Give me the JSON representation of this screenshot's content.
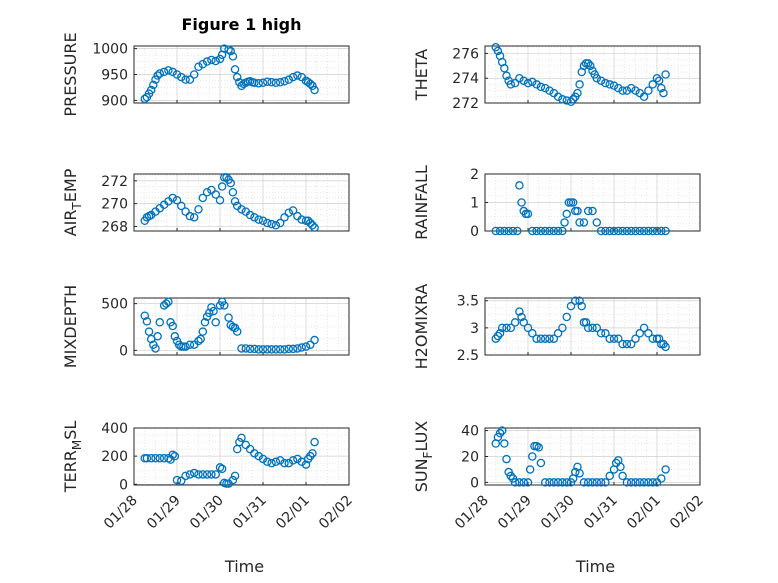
{
  "chart_data": [
    {
      "type": "scatter",
      "title": "Figure 1 high",
      "ylabel": "PRESSURE",
      "xlabel": "",
      "ylim": [
        895,
        1005
      ],
      "yticks": [
        "900",
        "950",
        "1000"
      ],
      "x_start": "01/28",
      "x": [
        0.25,
        0.3,
        0.35,
        0.4,
        0.45,
        0.5,
        0.55,
        0.6,
        0.7,
        0.8,
        0.9,
        1.0,
        1.1,
        1.2,
        1.3,
        1.4,
        1.5,
        1.6,
        1.7,
        1.8,
        1.9,
        2.0,
        2.05,
        2.1,
        2.2,
        2.25,
        2.3,
        2.35,
        2.4,
        2.45,
        2.5,
        2.55,
        2.6,
        2.65,
        2.7,
        2.75,
        2.8,
        2.9,
        3.0,
        3.1,
        3.2,
        3.3,
        3.4,
        3.5,
        3.6,
        3.7,
        3.8,
        3.9,
        4.0,
        4.05,
        4.1,
        4.15,
        4.2
      ],
      "values": [
        903,
        906,
        913,
        920,
        930,
        940,
        948,
        952,
        955,
        958,
        955,
        950,
        945,
        940,
        940,
        950,
        965,
        970,
        975,
        978,
        976,
        980,
        988,
        1000,
        998,
        995,
        985,
        960,
        945,
        935,
        928,
        932,
        934,
        936,
        937,
        935,
        934,
        933,
        934,
        936,
        935,
        934,
        935,
        937,
        940,
        945,
        948,
        945,
        938,
        935,
        932,
        928,
        920
      ]
    },
    {
      "type": "scatter",
      "ylabel": "THETA",
      "ylim": [
        272,
        276.6
      ],
      "yticks": [
        "272",
        "274",
        "276"
      ],
      "x": [
        0.25,
        0.3,
        0.35,
        0.4,
        0.45,
        0.5,
        0.55,
        0.6,
        0.7,
        0.8,
        0.9,
        1.0,
        1.1,
        1.2,
        1.3,
        1.4,
        1.5,
        1.6,
        1.7,
        1.8,
        1.9,
        2.0,
        2.05,
        2.1,
        2.15,
        2.2,
        2.25,
        2.3,
        2.35,
        2.4,
        2.45,
        2.5,
        2.55,
        2.6,
        2.7,
        2.8,
        2.9,
        3.0,
        3.1,
        3.2,
        3.3,
        3.4,
        3.5,
        3.6,
        3.7,
        3.8,
        3.9,
        4.0,
        4.05,
        4.1,
        4.15,
        4.2
      ],
      "values": [
        276.5,
        276.2,
        275.8,
        275.3,
        274.8,
        274.2,
        273.8,
        273.5,
        273.6,
        274.0,
        273.8,
        273.6,
        273.7,
        273.5,
        273.3,
        273.2,
        273.0,
        272.8,
        272.5,
        272.3,
        272.2,
        272.1,
        272.3,
        272.5,
        272.8,
        273.5,
        274.5,
        275.0,
        275.2,
        275.2,
        275.0,
        274.6,
        274.3,
        274.0,
        273.8,
        273.6,
        273.5,
        273.4,
        273.2,
        273.0,
        273.0,
        273.2,
        273.0,
        272.8,
        272.5,
        273.0,
        273.5,
        274.0,
        273.8,
        273.2,
        272.8,
        274.3
      ]
    },
    {
      "type": "scatter",
      "ylabel": "AIR_TEMP",
      "ylim": [
        267.6,
        272.6
      ],
      "yticks": [
        "268",
        "270",
        "272"
      ],
      "x": [
        0.25,
        0.3,
        0.35,
        0.4,
        0.5,
        0.6,
        0.7,
        0.8,
        0.9,
        1.0,
        1.1,
        1.2,
        1.3,
        1.4,
        1.5,
        1.6,
        1.7,
        1.8,
        1.9,
        2.0,
        2.05,
        2.1,
        2.15,
        2.2,
        2.25,
        2.3,
        2.35,
        2.4,
        2.5,
        2.6,
        2.7,
        2.8,
        2.9,
        3.0,
        3.1,
        3.2,
        3.3,
        3.4,
        3.5,
        3.6,
        3.7,
        3.8,
        3.9,
        4.0,
        4.05,
        4.1,
        4.15,
        4.2
      ],
      "values": [
        268.5,
        268.8,
        268.9,
        269.0,
        269.3,
        269.6,
        269.9,
        270.2,
        270.5,
        270.3,
        269.8,
        269.3,
        268.9,
        268.8,
        269.5,
        270.5,
        271.0,
        271.2,
        270.8,
        270.3,
        271.5,
        272.3,
        272.3,
        272.1,
        271.8,
        271.0,
        270.2,
        269.8,
        269.5,
        269.3,
        269.0,
        268.8,
        268.6,
        268.5,
        268.3,
        268.2,
        268.1,
        268.3,
        268.8,
        269.2,
        269.4,
        268.9,
        268.6,
        268.5,
        268.5,
        268.3,
        268.1,
        267.9
      ]
    },
    {
      "type": "scatter",
      "ylabel": "RAINFALL",
      "ylim": [
        0,
        2
      ],
      "yticks": [
        "0",
        "1",
        "2"
      ],
      "x": [
        0.25,
        0.35,
        0.45,
        0.55,
        0.65,
        0.75,
        0.8,
        0.85,
        0.9,
        0.95,
        1.0,
        1.1,
        1.2,
        1.3,
        1.4,
        1.5,
        1.6,
        1.7,
        1.8,
        1.85,
        1.9,
        1.95,
        2.0,
        2.05,
        2.1,
        2.15,
        2.2,
        2.3,
        2.4,
        2.5,
        2.6,
        2.7,
        2.8,
        2.9,
        3.0,
        3.1,
        3.2,
        3.3,
        3.4,
        3.5,
        3.6,
        3.7,
        3.8,
        3.9,
        4.0,
        4.1,
        4.2
      ],
      "values": [
        0,
        0,
        0,
        0,
        0,
        0,
        1.6,
        1.0,
        0.7,
        0.6,
        0.6,
        0,
        0,
        0,
        0,
        0,
        0,
        0,
        0,
        0.3,
        0.6,
        1.0,
        1.0,
        1.0,
        0.7,
        0.7,
        0.3,
        0.3,
        0.7,
        0.7,
        0.3,
        0,
        0,
        0,
        0,
        0,
        0,
        0,
        0,
        0,
        0,
        0,
        0,
        0,
        0,
        0,
        0
      ]
    },
    {
      "type": "scatter",
      "ylabel": "MIXDEPTH",
      "ylim": [
        -50,
        560
      ],
      "yticks": [
        "0",
        "500"
      ],
      "x": [
        0.25,
        0.3,
        0.35,
        0.4,
        0.45,
        0.5,
        0.55,
        0.6,
        0.7,
        0.75,
        0.8,
        0.85,
        0.9,
        0.95,
        1.0,
        1.05,
        1.1,
        1.15,
        1.2,
        1.3,
        1.4,
        1.5,
        1.55,
        1.6,
        1.65,
        1.7,
        1.75,
        1.8,
        1.85,
        1.9,
        2.0,
        2.05,
        2.1,
        2.2,
        2.25,
        2.3,
        2.35,
        2.4,
        2.5,
        2.6,
        2.7,
        2.8,
        2.9,
        3.0,
        3.1,
        3.2,
        3.3,
        3.4,
        3.5,
        3.6,
        3.7,
        3.8,
        3.9,
        4.0,
        4.1,
        4.2
      ],
      "values": [
        370,
        310,
        200,
        120,
        60,
        20,
        150,
        300,
        480,
        500,
        520,
        300,
        260,
        150,
        100,
        60,
        40,
        40,
        40,
        60,
        60,
        100,
        120,
        200,
        300,
        360,
        400,
        460,
        420,
        300,
        480,
        520,
        480,
        350,
        270,
        250,
        240,
        200,
        20,
        20,
        15,
        15,
        10,
        10,
        10,
        10,
        10,
        10,
        10,
        15,
        15,
        20,
        30,
        40,
        60,
        110
      ]
    },
    {
      "type": "scatter",
      "ylabel": "H2OMIXRA",
      "ylim": [
        2.5,
        3.55
      ],
      "yticks": [
        "2.5",
        "3",
        "3.5"
      ],
      "x": [
        0.25,
        0.3,
        0.35,
        0.4,
        0.5,
        0.6,
        0.7,
        0.8,
        0.85,
        0.9,
        1.0,
        1.1,
        1.2,
        1.3,
        1.4,
        1.5,
        1.6,
        1.7,
        1.8,
        1.9,
        2.0,
        2.1,
        2.2,
        2.25,
        2.3,
        2.35,
        2.4,
        2.5,
        2.6,
        2.7,
        2.8,
        2.9,
        3.0,
        3.1,
        3.2,
        3.3,
        3.4,
        3.5,
        3.6,
        3.7,
        3.8,
        3.9,
        4.0,
        4.05,
        4.1,
        4.15,
        4.2
      ],
      "values": [
        2.8,
        2.85,
        2.9,
        3.0,
        3.0,
        3.0,
        3.1,
        3.3,
        3.2,
        3.1,
        3.0,
        2.9,
        2.8,
        2.8,
        2.8,
        2.8,
        2.8,
        2.9,
        3.0,
        3.2,
        3.4,
        3.5,
        3.5,
        3.4,
        3.1,
        3.1,
        3.0,
        3.0,
        3.0,
        2.9,
        2.9,
        2.8,
        2.8,
        2.8,
        2.7,
        2.7,
        2.7,
        2.8,
        2.9,
        3.0,
        2.9,
        2.8,
        2.8,
        2.8,
        2.7,
        2.7,
        2.65
      ]
    },
    {
      "type": "scatter",
      "ylabel": "TERR_MSL",
      "ylim": [
        -5,
        400
      ],
      "yticks": [
        "0",
        "200",
        "400"
      ],
      "x": [
        0.25,
        0.3,
        0.4,
        0.5,
        0.6,
        0.7,
        0.8,
        0.85,
        0.9,
        0.95,
        1.0,
        1.1,
        1.2,
        1.3,
        1.4,
        1.5,
        1.6,
        1.7,
        1.8,
        1.9,
        2.0,
        2.05,
        2.1,
        2.15,
        2.2,
        2.3,
        2.35,
        2.4,
        2.45,
        2.5,
        2.6,
        2.7,
        2.8,
        2.9,
        3.0,
        3.1,
        3.2,
        3.3,
        3.4,
        3.5,
        3.6,
        3.7,
        3.8,
        3.9,
        4.0,
        4.05,
        4.1,
        4.15,
        4.2
      ],
      "values": [
        185,
        185,
        185,
        185,
        185,
        185,
        185,
        175,
        210,
        200,
        30,
        25,
        60,
        70,
        80,
        70,
        70,
        70,
        70,
        70,
        120,
        110,
        10,
        5,
        5,
        30,
        60,
        250,
        300,
        330,
        280,
        250,
        220,
        200,
        180,
        160,
        150,
        160,
        170,
        150,
        150,
        170,
        180,
        160,
        140,
        180,
        200,
        220,
        300
      ]
    },
    {
      "type": "scatter",
      "ylabel": "SUN_FLUX",
      "ylim": [
        -2,
        42
      ],
      "yticks": [
        "0",
        "20",
        "40"
      ],
      "x": [
        0.25,
        0.3,
        0.35,
        0.4,
        0.45,
        0.5,
        0.55,
        0.6,
        0.65,
        0.7,
        0.8,
        0.9,
        1.0,
        1.05,
        1.1,
        1.15,
        1.2,
        1.25,
        1.3,
        1.4,
        1.5,
        1.6,
        1.7,
        1.8,
        1.9,
        2.0,
        2.05,
        2.1,
        2.15,
        2.2,
        2.3,
        2.4,
        2.5,
        2.6,
        2.7,
        2.8,
        2.9,
        3.0,
        3.05,
        3.1,
        3.15,
        3.2,
        3.3,
        3.4,
        3.5,
        3.6,
        3.7,
        3.8,
        3.9,
        4.0,
        4.1,
        4.2
      ],
      "values": [
        30,
        35,
        38,
        40,
        30,
        18,
        8,
        5,
        3,
        0,
        0,
        0,
        0,
        10,
        20,
        28,
        28,
        27,
        15,
        0,
        0,
        0,
        0,
        0,
        0,
        0,
        3,
        8,
        12,
        7,
        0,
        0,
        0,
        0,
        0,
        0,
        5,
        10,
        15,
        17,
        12,
        5,
        0,
        0,
        0,
        0,
        0,
        0,
        0,
        0,
        3,
        10
      ]
    }
  ],
  "xaxis": {
    "xlabel": "Time",
    "xticks": [
      "01/28",
      "01/29",
      "01/30",
      "01/31",
      "02/01",
      "02/02"
    ]
  }
}
